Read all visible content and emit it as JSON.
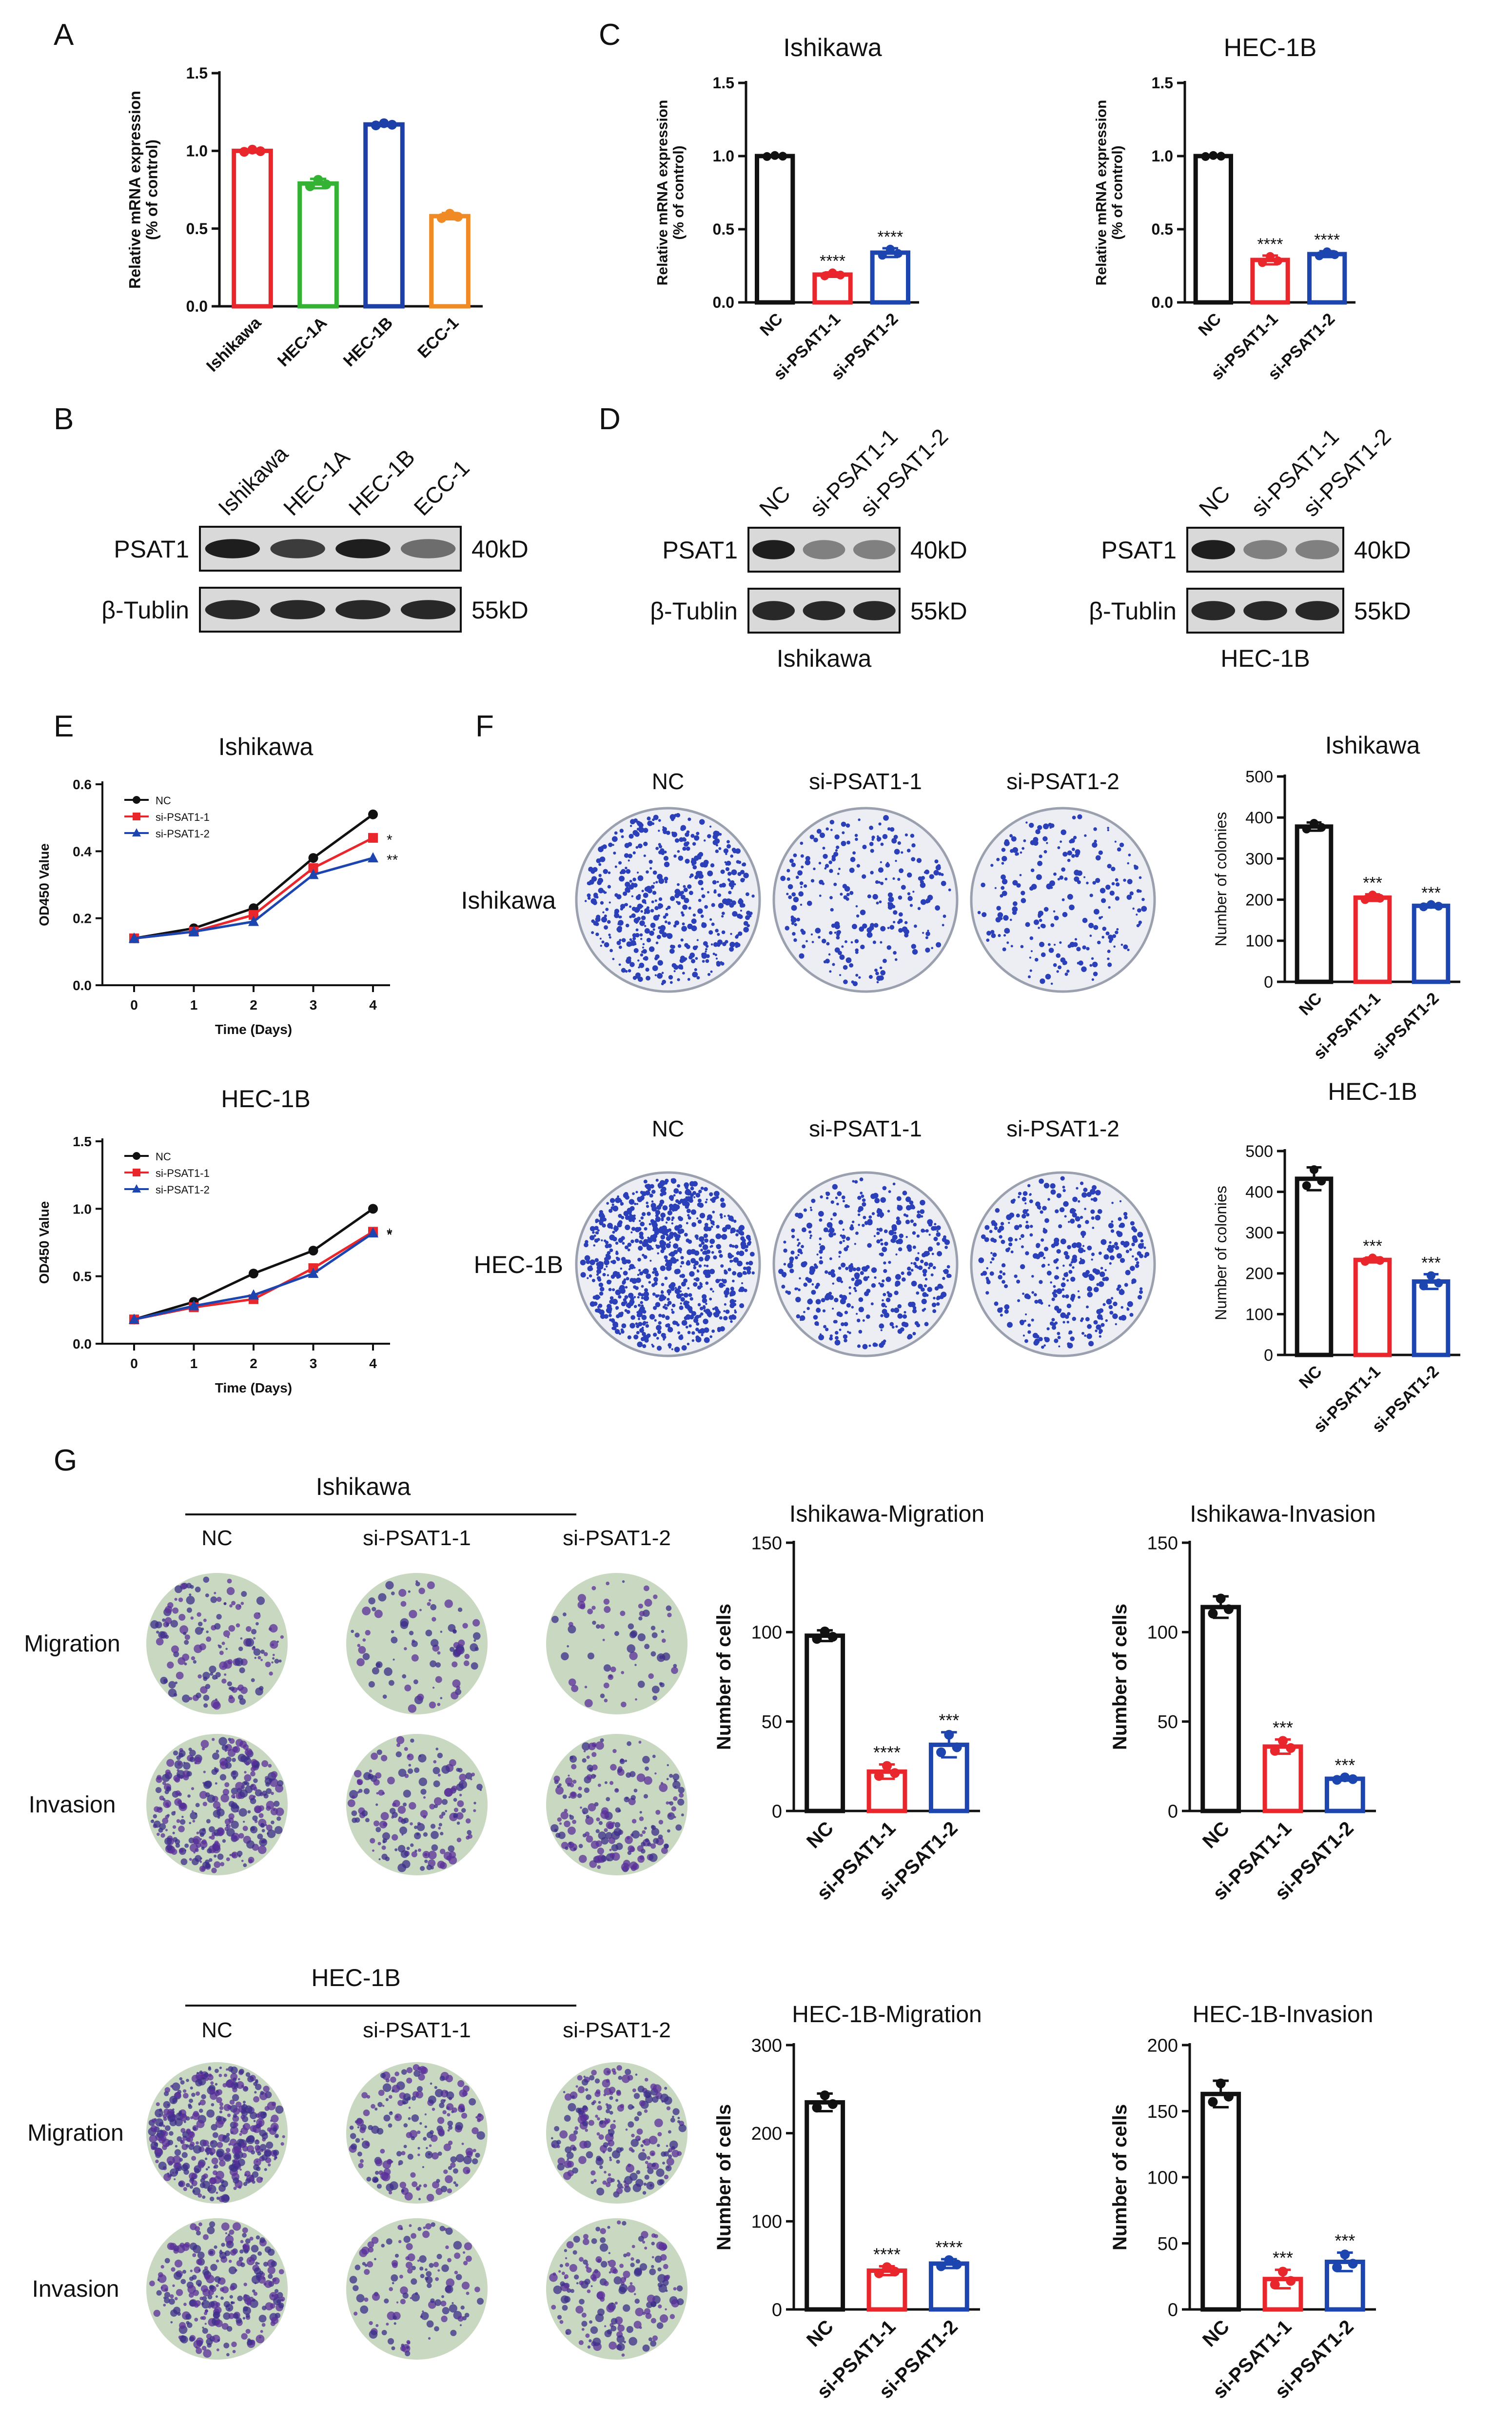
{
  "panel_letters": {
    "A": "A",
    "B": "B",
    "C": "C",
    "D": "D",
    "E": "E",
    "F": "F",
    "G": "G"
  },
  "colors": {
    "nc": "#111111",
    "si1": "#e8262b",
    "si2": "#1d45b0",
    "hec1a": "#33b233",
    "hec1b": "#1d3fa8",
    "ecc1": "#f08a24",
    "ishikawa": "#e8262b"
  },
  "western_blots": {
    "B": {
      "lanes": [
        "Ishikawa",
        "HEC-1A",
        "HEC-1B",
        "ECC-1"
      ],
      "rows": [
        "PSAT1",
        "β-Tublin"
      ],
      "sizes": [
        "40kD",
        "55kD"
      ]
    },
    "D_ishikawa": {
      "lanes": [
        "NC",
        "si-PSAT1-1",
        "si-PSAT1-2"
      ],
      "rows": [
        "PSAT1",
        "β-Tublin"
      ],
      "sizes": [
        "40kD",
        "55kD"
      ],
      "caption": "Ishikawa"
    },
    "D_hec1b": {
      "lanes": [
        "NC",
        "si-PSAT1-1",
        "si-PSAT1-2"
      ],
      "rows": [
        "PSAT1",
        "β-Tublin"
      ],
      "sizes": [
        "40kD",
        "55kD"
      ],
      "caption": "HEC-1B"
    }
  },
  "colony_images": {
    "F_ishikawa": {
      "row_label": "Ishikawa",
      "col_labels": [
        "NC",
        "si-PSAT1-1",
        "si-PSAT1-2"
      ]
    },
    "F_hec1b": {
      "row_label": "HEC-1B",
      "col_labels": [
        "NC",
        "si-PSAT1-1",
        "si-PSAT1-2"
      ]
    }
  },
  "transwell_images": {
    "G_ishikawa": {
      "header": "Ishikawa",
      "col_labels": [
        "NC",
        "si-PSAT1-1",
        "si-PSAT1-2"
      ],
      "row_labels": [
        "Migration",
        "Invasion"
      ]
    },
    "G_hec1b": {
      "header": "HEC-1B",
      "col_labels": [
        "NC",
        "si-PSAT1-1",
        "si-PSAT1-2"
      ],
      "row_labels": [
        "Migration",
        "Invasion"
      ]
    }
  },
  "chart_data": [
    {
      "id": "A",
      "type": "bar",
      "title": "",
      "ylabel": "Relative mRNA expression (% of control)",
      "ylabel_lines": [
        "Relative mRNA expression",
        "(% of control)"
      ],
      "categories": [
        "Ishikawa",
        "HEC-1A",
        "HEC-1B",
        "ECC-1"
      ],
      "values": [
        1.0,
        0.79,
        1.17,
        0.58
      ],
      "errors": [
        0.01,
        0.03,
        0.01,
        0.02
      ],
      "colors": [
        "#e8262b",
        "#33b233",
        "#1d3fa8",
        "#f08a24"
      ],
      "ylim": [
        0,
        1.5
      ],
      "yticks": [
        "0.0",
        "0.5",
        "1.0",
        "1.5"
      ],
      "annotations": [
        "",
        "",
        "",
        ""
      ]
    },
    {
      "id": "C1",
      "type": "bar",
      "title": "Ishikawa",
      "ylabel": "Relative mRNA expression (% of control)",
      "ylabel_lines": [
        "Relative mRNA expression",
        "(% of control)"
      ],
      "categories": [
        "NC",
        "si-PSAT1-1",
        "si-PSAT1-2"
      ],
      "values": [
        1.0,
        0.19,
        0.34
      ],
      "errors": [
        0.005,
        0.015,
        0.03
      ],
      "colors": [
        "#111111",
        "#e8262b",
        "#1d45b0"
      ],
      "ylim": [
        0,
        1.5
      ],
      "yticks": [
        "0.0",
        "0.5",
        "1.0",
        "1.5"
      ],
      "annotations": [
        "",
        "****",
        "****"
      ]
    },
    {
      "id": "C2",
      "type": "bar",
      "title": "HEC-1B",
      "ylabel": "Relative mRNA expression (% of control)",
      "ylabel_lines": [
        "Relative mRNA expression",
        "(% of control)"
      ],
      "categories": [
        "NC",
        "si-PSAT1-1",
        "si-PSAT1-2"
      ],
      "values": [
        1.0,
        0.29,
        0.33
      ],
      "errors": [
        0.005,
        0.03,
        0.02
      ],
      "colors": [
        "#111111",
        "#e8262b",
        "#1d45b0"
      ],
      "ylim": [
        0,
        1.5
      ],
      "yticks": [
        "0.0",
        "0.5",
        "1.0",
        "1.5"
      ],
      "annotations": [
        "",
        "****",
        "****"
      ]
    },
    {
      "id": "E1",
      "type": "line",
      "title": "Ishikawa",
      "xlabel": "Time (Days)",
      "ylabel": "OD450 Value",
      "x": [
        0,
        1,
        2,
        3,
        4
      ],
      "ylim": [
        0,
        0.6
      ],
      "yticks": [
        "0.0",
        "0.2",
        "0.4",
        "0.6"
      ],
      "series": [
        {
          "name": "NC",
          "values": [
            0.14,
            0.17,
            0.23,
            0.38,
            0.51
          ],
          "color": "#111111",
          "marker": "circle"
        },
        {
          "name": "si-PSAT1-1",
          "values": [
            0.14,
            0.16,
            0.21,
            0.35,
            0.44
          ],
          "color": "#e8262b",
          "marker": "square"
        },
        {
          "name": "si-PSAT1-2",
          "values": [
            0.14,
            0.16,
            0.19,
            0.33,
            0.38
          ],
          "color": "#1d45b0",
          "marker": "triangle"
        }
      ],
      "end_annotations": [
        "*",
        "**"
      ]
    },
    {
      "id": "E2",
      "type": "line",
      "title": "HEC-1B",
      "xlabel": "Time (Days)",
      "ylabel": "OD450 Value",
      "x": [
        0,
        1,
        2,
        3,
        4
      ],
      "ylim": [
        0,
        1.5
      ],
      "yticks": [
        "0.0",
        "0.5",
        "1.0",
        "1.5"
      ],
      "series": [
        {
          "name": "NC",
          "values": [
            0.18,
            0.31,
            0.52,
            0.69,
            1.0
          ],
          "color": "#111111",
          "marker": "circle"
        },
        {
          "name": "si-PSAT1-1",
          "values": [
            0.18,
            0.27,
            0.33,
            0.56,
            0.83
          ],
          "color": "#e8262b",
          "marker": "square"
        },
        {
          "name": "si-PSAT1-2",
          "values": [
            0.18,
            0.28,
            0.36,
            0.52,
            0.82
          ],
          "color": "#1d45b0",
          "marker": "triangle"
        }
      ],
      "end_annotations": [
        "*",
        "*"
      ]
    },
    {
      "id": "F1",
      "type": "bar",
      "title": "Ishikawa",
      "ylabel": "Number of colonies",
      "categories": [
        "NC",
        "si-PSAT1-1",
        "si-PSAT1-2"
      ],
      "values": [
        378,
        205,
        185
      ],
      "errors": [
        10,
        8,
        4
      ],
      "colors": [
        "#111111",
        "#e8262b",
        "#1d45b0"
      ],
      "ylim": [
        0,
        500
      ],
      "yticks": [
        "0",
        "100",
        "200",
        "300",
        "400",
        "500"
      ],
      "annotations": [
        "",
        "***",
        "***"
      ]
    },
    {
      "id": "F2",
      "type": "bar",
      "title": "HEC-1B",
      "ylabel": "Number of colonies",
      "categories": [
        "NC",
        "si-PSAT1-1",
        "si-PSAT1-2"
      ],
      "values": [
        432,
        233,
        180
      ],
      "errors": [
        28,
        6,
        18
      ],
      "colors": [
        "#111111",
        "#e8262b",
        "#1d45b0"
      ],
      "ylim": [
        0,
        500
      ],
      "yticks": [
        "0",
        "100",
        "200",
        "300",
        "400",
        "500"
      ],
      "annotations": [
        "",
        "***",
        "***"
      ]
    },
    {
      "id": "G1",
      "type": "bar",
      "title": "Ishikawa-Migration",
      "ylabel": "Number of cells",
      "categories": [
        "NC",
        "si-PSAT1-1",
        "si-PSAT1-2"
      ],
      "values": [
        98,
        22,
        37
      ],
      "errors": [
        3,
        4,
        7
      ],
      "colors": [
        "#111111",
        "#e8262b",
        "#1d45b0"
      ],
      "ylim": [
        0,
        150
      ],
      "yticks": [
        "0",
        "50",
        "100",
        "150"
      ],
      "annotations": [
        "",
        "****",
        "***"
      ]
    },
    {
      "id": "G2",
      "type": "bar",
      "title": "Ishikawa-Invasion",
      "ylabel": "Number of cells",
      "categories": [
        "NC",
        "si-PSAT1-1",
        "si-PSAT1-2"
      ],
      "values": [
        114,
        36,
        18
      ],
      "errors": [
        6,
        4,
        1
      ],
      "colors": [
        "#111111",
        "#e8262b",
        "#1d45b0"
      ],
      "ylim": [
        0,
        150
      ],
      "yticks": [
        "0",
        "50",
        "100",
        "150"
      ],
      "annotations": [
        "",
        "***",
        "***"
      ]
    },
    {
      "id": "G3",
      "type": "bar",
      "title": "HEC-1B-Migration",
      "ylabel": "Number of cells",
      "categories": [
        "NC",
        "si-PSAT1-1",
        "si-PSAT1-2"
      ],
      "values": [
        235,
        44,
        52
      ],
      "errors": [
        10,
        5,
        5
      ],
      "colors": [
        "#111111",
        "#e8262b",
        "#1d45b0"
      ],
      "ylim": [
        0,
        300
      ],
      "yticks": [
        "0",
        "100",
        "200",
        "300"
      ],
      "annotations": [
        "",
        "****",
        "****"
      ]
    },
    {
      "id": "G4",
      "type": "bar",
      "title": "HEC-1B-Invasion",
      "ylabel": "Number of cells",
      "categories": [
        "NC",
        "si-PSAT1-1",
        "si-PSAT1-2"
      ],
      "values": [
        163,
        23,
        36
      ],
      "errors": [
        10,
        7,
        7
      ],
      "colors": [
        "#111111",
        "#e8262b",
        "#1d45b0"
      ],
      "ylim": [
        0,
        200
      ],
      "yticks": [
        "0",
        "50",
        "100",
        "150",
        "200"
      ],
      "annotations": [
        "",
        "***",
        "***"
      ]
    }
  ]
}
